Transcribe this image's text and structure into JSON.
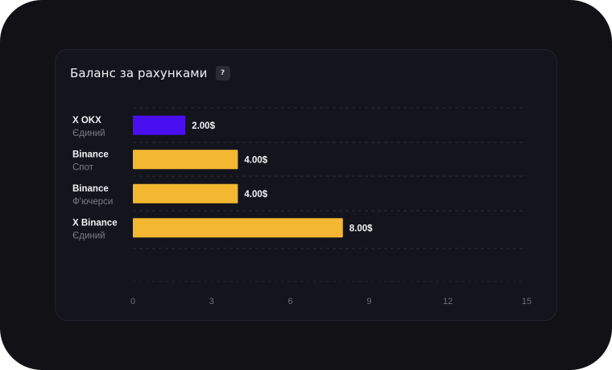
{
  "card": {
    "title": "Баланс за рахунками",
    "help_label": "?"
  },
  "chart_data": {
    "type": "bar",
    "orientation": "horizontal",
    "title": "Баланс за рахунками",
    "categories": [
      {
        "name": "X OKX",
        "sub": "Єдиний"
      },
      {
        "name": "Binance",
        "sub": "Спот"
      },
      {
        "name": "Binance",
        "sub": "Ф'ючерси"
      },
      {
        "name": "X Binance",
        "sub": "Єдиний"
      }
    ],
    "values": [
      2,
      4,
      4,
      8
    ],
    "value_labels": [
      "2.00$",
      "4.00$",
      "4.00$",
      "8.00$"
    ],
    "colors": [
      "#4a0ff0",
      "#f3b731",
      "#f3b731",
      "#f3b731"
    ],
    "xlim": [
      0,
      15
    ],
    "xticks": [
      "0",
      "3",
      "6",
      "9",
      "12",
      "15"
    ],
    "grid": true
  }
}
